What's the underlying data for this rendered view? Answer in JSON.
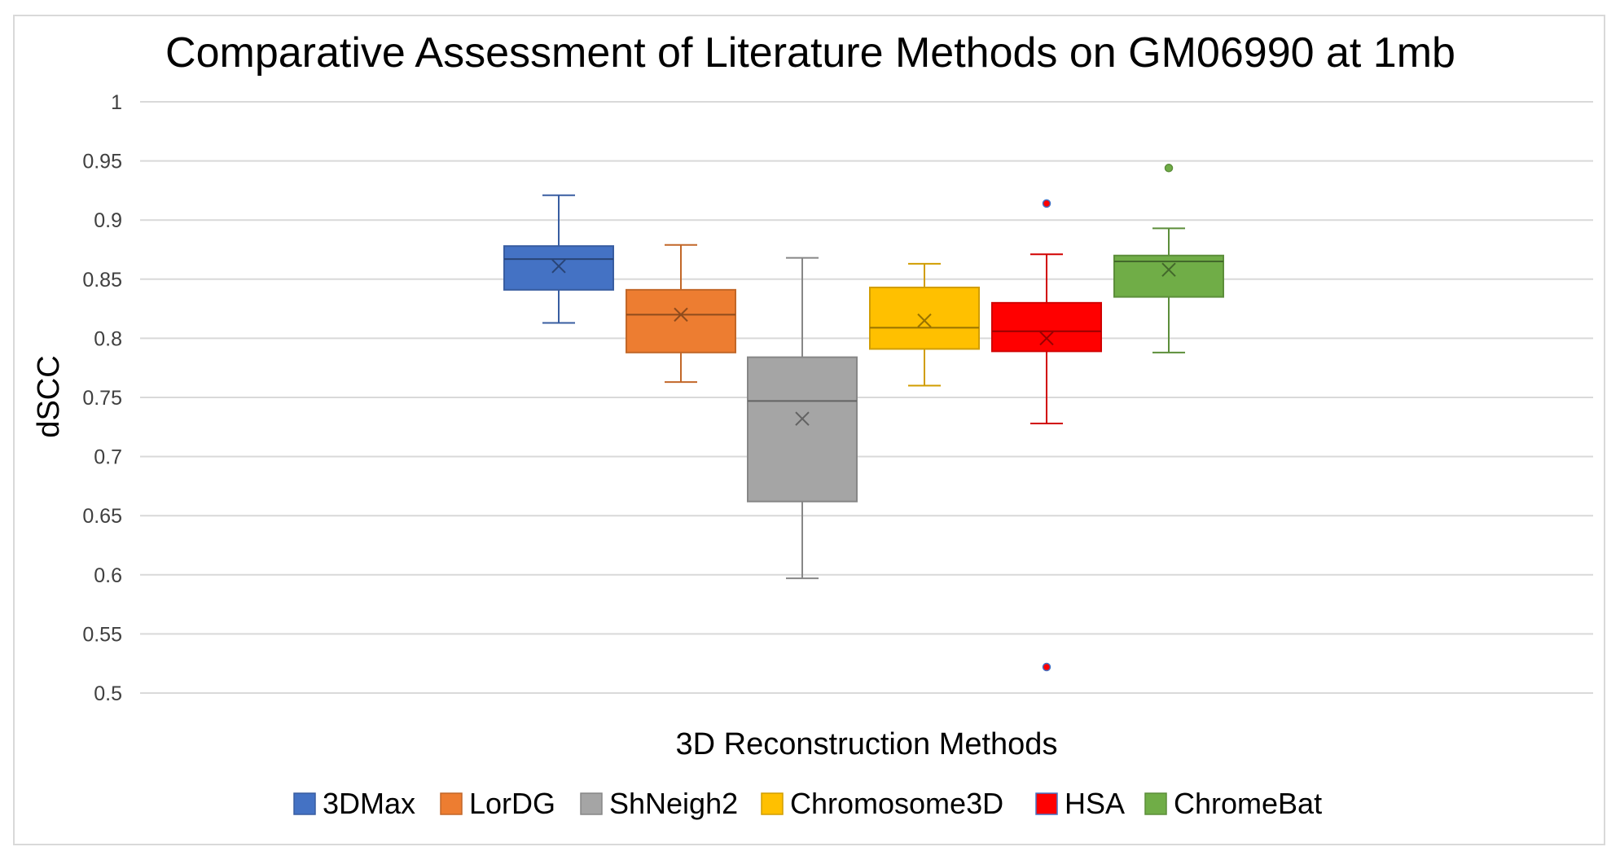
{
  "chart_data": {
    "type": "boxplot",
    "title": "Comparative Assessment of Literature Methods on GM06990 at 1mb",
    "xlabel": "3D Reconstruction Methods",
    "ylabel": "dSCC",
    "ylim": [
      0.5,
      1
    ],
    "yticks": [
      0.5,
      0.55,
      0.6,
      0.65,
      0.7,
      0.75,
      0.8,
      0.85,
      0.9,
      0.95,
      1
    ],
    "ytick_labels": [
      "0.5",
      "0.55",
      "0.6",
      "0.65",
      "0.7",
      "0.75",
      "0.8",
      "0.85",
      "0.9",
      "0.95",
      "1"
    ],
    "grid": true,
    "legend_position": "bottom",
    "series": [
      {
        "name": "3DMax",
        "color": "#4472C4",
        "whisker_low": 0.813,
        "q1": 0.841,
        "median": 0.867,
        "q3": 0.878,
        "whisker_high": 0.921,
        "mean": 0.861,
        "outliers": []
      },
      {
        "name": "LorDG",
        "color": "#ED7D31",
        "whisker_low": 0.763,
        "q1": 0.788,
        "median": 0.82,
        "q3": 0.841,
        "whisker_high": 0.879,
        "mean": 0.82,
        "outliers": []
      },
      {
        "name": "ShNeigh2",
        "color": "#A5A5A5",
        "whisker_low": 0.597,
        "q1": 0.662,
        "median": 0.747,
        "q3": 0.784,
        "whisker_high": 0.868,
        "mean": 0.732,
        "outliers": []
      },
      {
        "name": "Chromosome3D",
        "color": "#FFC000",
        "whisker_low": 0.76,
        "q1": 0.791,
        "median": 0.809,
        "q3": 0.843,
        "whisker_high": 0.863,
        "mean": 0.815,
        "outliers": []
      },
      {
        "name": "HSA",
        "color": "#FF0000",
        "whisker_low": 0.728,
        "q1": 0.789,
        "median": 0.806,
        "q3": 0.83,
        "whisker_high": 0.871,
        "mean": 0.8,
        "outliers": [
          0.914,
          0.522
        ]
      },
      {
        "name": "ChromeBat",
        "color": "#70AD47",
        "whisker_low": 0.788,
        "q1": 0.835,
        "median": 0.865,
        "q3": 0.87,
        "whisker_high": 0.893,
        "mean": 0.858,
        "outliers": [
          0.944
        ]
      }
    ]
  }
}
